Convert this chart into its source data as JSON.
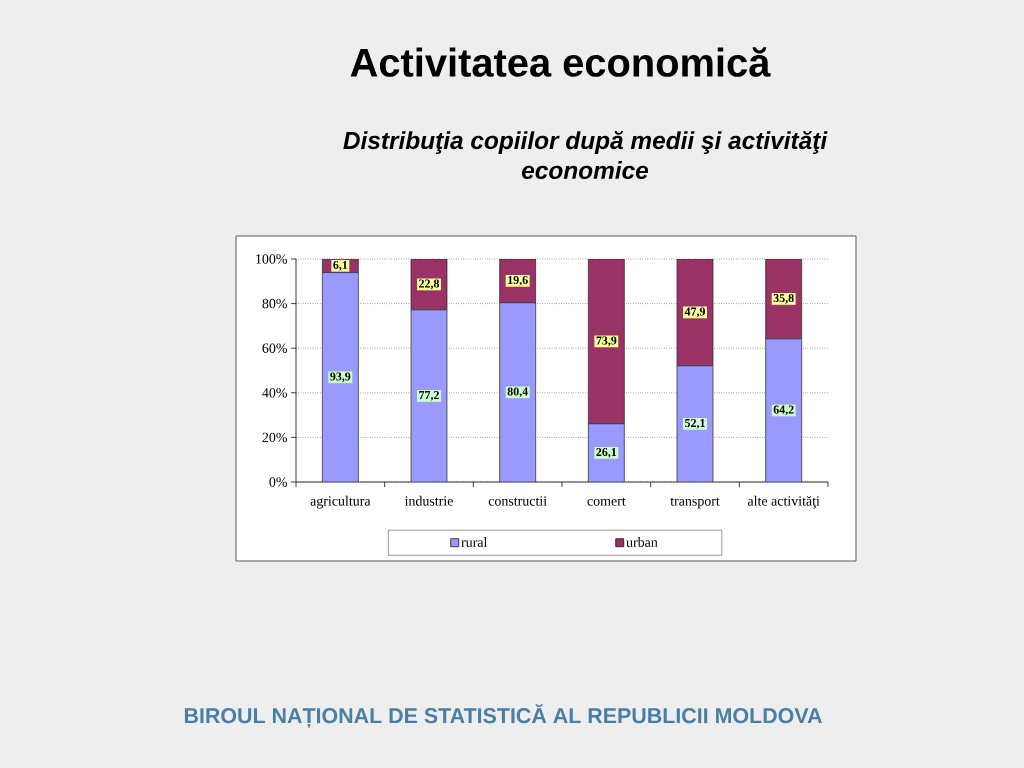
{
  "chart_data": {
    "type": "bar",
    "title": "Activitatea economică",
    "subtitle": "Distribuţia copiilor după medii şi activităţi economice",
    "categories": [
      "agricultura",
      "industrie",
      "constructii",
      "comert",
      "transport",
      "alte activităţi"
    ],
    "stacked": true,
    "series": [
      {
        "name": "rural",
        "color": "#9999ff",
        "values": [
          93.9,
          77.2,
          80.4,
          26.1,
          52.1,
          64.2
        ],
        "value_labels": [
          "93,9",
          "77,2",
          "80,4",
          "26,1",
          "52,1",
          "64,2"
        ]
      },
      {
        "name": "urban",
        "color": "#993366",
        "values": [
          6.1,
          22.8,
          19.6,
          73.9,
          47.9,
          35.8
        ],
        "value_labels": [
          "6,1",
          "22,8",
          "19,6",
          "73,9",
          "47,9",
          "35,8"
        ]
      }
    ],
    "ylim": [
      0,
      100
    ],
    "yticks": [
      {
        "value": 0,
        "label": "0%"
      },
      {
        "value": 20,
        "label": "20%"
      },
      {
        "value": 40,
        "label": "40%"
      },
      {
        "value": 60,
        "label": "60%"
      },
      {
        "value": 80,
        "label": "80%"
      },
      {
        "value": 100,
        "label": "100%"
      }
    ],
    "grid": "y",
    "legend": "bottom",
    "annotations": [
      "BIROUL NAȚIONAL DE STATISTICĂ AL REPUBLICII MOLDOVA"
    ]
  }
}
